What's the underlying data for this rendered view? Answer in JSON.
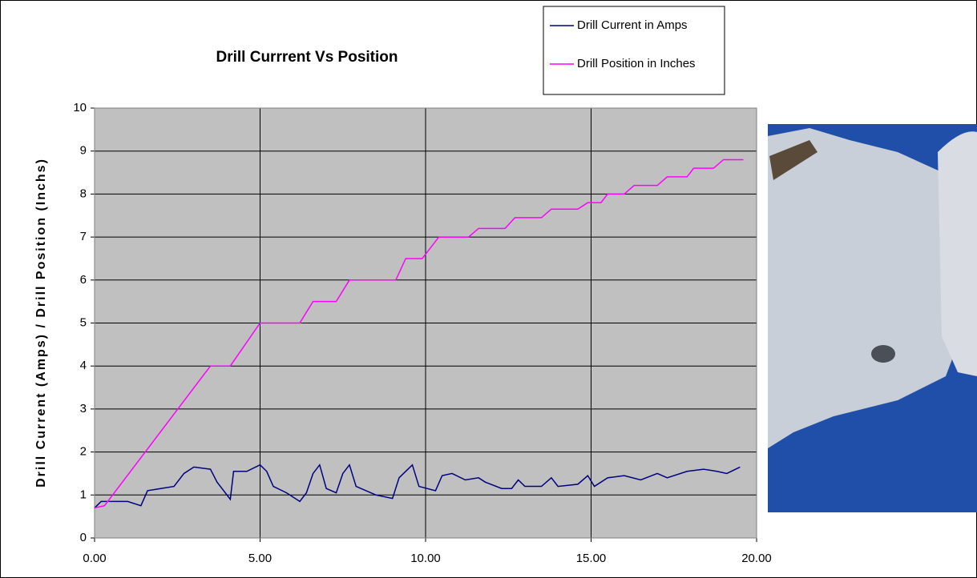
{
  "chart_data": {
    "type": "line",
    "title": "Drill Currrent Vs Position",
    "y_label": "Drill Current (Amps) / Drill Position (Inchs)",
    "xlim": [
      0,
      20
    ],
    "xticks": [
      {
        "value": 0,
        "label": "0.00"
      },
      {
        "value": 5,
        "label": "5.00"
      },
      {
        "value": 10,
        "label": "10.00"
      },
      {
        "value": 15,
        "label": "15.00"
      },
      {
        "value": 20,
        "label": "20.00"
      }
    ],
    "ylim": [
      0,
      10
    ],
    "yticks": [
      0,
      1,
      2,
      3,
      4,
      5,
      6,
      7,
      8,
      9,
      10
    ],
    "grid": true,
    "legend": "top-right",
    "series": [
      {
        "name": "Drill Current in Amps",
        "color": "#000080",
        "x": [
          0,
          0.2,
          1.0,
          1.4,
          1.6,
          2.0,
          2.4,
          2.7,
          3.0,
          3.5,
          3.7,
          4.1,
          4.2,
          4.6,
          5.0,
          5.2,
          5.4,
          5.8,
          6.2,
          6.4,
          6.6,
          6.8,
          7.0,
          7.3,
          7.5,
          7.7,
          7.9,
          8.5,
          9.0,
          9.2,
          9.6,
          9.8,
          10.3,
          10.5,
          10.8,
          11.2,
          11.6,
          11.8,
          12.3,
          12.6,
          12.8,
          13.0,
          13.5,
          13.8,
          14.0,
          14.6,
          14.9,
          15.1,
          15.5,
          16.0,
          16.5,
          17.0,
          17.3,
          17.9,
          18.4,
          18.8,
          19.1,
          19.5
        ],
        "values": [
          0.7,
          0.85,
          0.85,
          0.75,
          1.1,
          1.15,
          1.2,
          1.5,
          1.65,
          1.6,
          1.3,
          0.9,
          1.55,
          1.55,
          1.7,
          1.55,
          1.2,
          1.05,
          0.85,
          1.05,
          1.5,
          1.7,
          1.15,
          1.05,
          1.5,
          1.7,
          1.2,
          1.0,
          0.92,
          1.4,
          1.7,
          1.2,
          1.1,
          1.45,
          1.5,
          1.35,
          1.4,
          1.3,
          1.15,
          1.15,
          1.35,
          1.2,
          1.2,
          1.4,
          1.2,
          1.25,
          1.45,
          1.2,
          1.4,
          1.45,
          1.35,
          1.5,
          1.4,
          1.55,
          1.6,
          1.55,
          1.5,
          1.65
        ]
      },
      {
        "name": "Drill Position in Inches",
        "color": "#ff00ff",
        "x": [
          0,
          0.3,
          3.5,
          4.1,
          5.0,
          6.2,
          6.6,
          7.3,
          7.7,
          9.1,
          9.4,
          9.9,
          10.4,
          11.3,
          11.6,
          12.4,
          12.7,
          13.5,
          13.8,
          14.6,
          14.9,
          15.3,
          15.5,
          16.0,
          16.3,
          17.0,
          17.3,
          17.9,
          18.1,
          18.7,
          19.0,
          19.6
        ],
        "values": [
          0.7,
          0.75,
          4.0,
          4.0,
          5.0,
          5.0,
          5.5,
          5.5,
          6.0,
          6.0,
          6.5,
          6.5,
          7.0,
          7.0,
          7.2,
          7.2,
          7.45,
          7.45,
          7.65,
          7.65,
          7.8,
          7.8,
          8.0,
          8.0,
          8.2,
          8.2,
          8.4,
          8.4,
          8.6,
          8.6,
          8.8,
          8.8
        ]
      }
    ]
  }
}
